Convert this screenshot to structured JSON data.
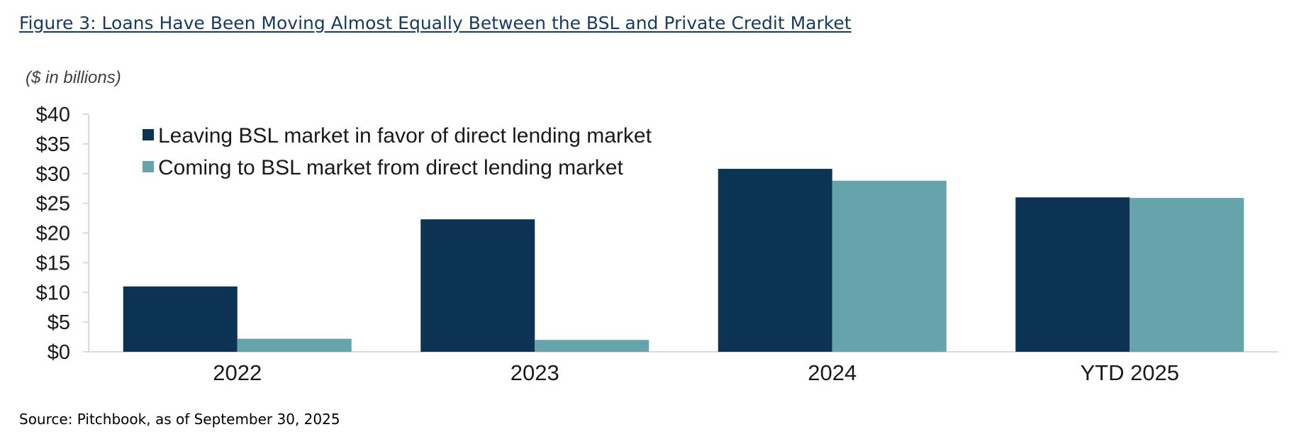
{
  "figure": {
    "title": "Figure 3: Loans Have Been Moving Almost Equally Between the BSL and Private Credit Market",
    "units": "($ in billions)",
    "source": "Source: Pitchbook, as of September 30, 2025"
  },
  "chart_data": {
    "type": "bar",
    "title": "",
    "xlabel": "",
    "ylabel": "",
    "categories": [
      "2022",
      "2023",
      "2024",
      "YTD 2025"
    ],
    "series": [
      {
        "name": "Leaving BSL market in favor of direct lending market",
        "color": "#0c3353",
        "values": [
          11.0,
          22.3,
          30.8,
          26.0
        ]
      },
      {
        "name": "Coming to BSL market from direct lending market",
        "color": "#67a3aa",
        "values": [
          2.2,
          2.0,
          28.8,
          25.9
        ]
      }
    ],
    "ylim": [
      0,
      40
    ],
    "yticks": [
      0,
      5,
      10,
      15,
      20,
      25,
      30,
      35,
      40
    ],
    "ytick_labels": [
      "$0",
      "$5",
      "$10",
      "$15",
      "$20",
      "$25",
      "$30",
      "$35",
      "$40"
    ],
    "grid": false,
    "legend_position": "top-left"
  }
}
